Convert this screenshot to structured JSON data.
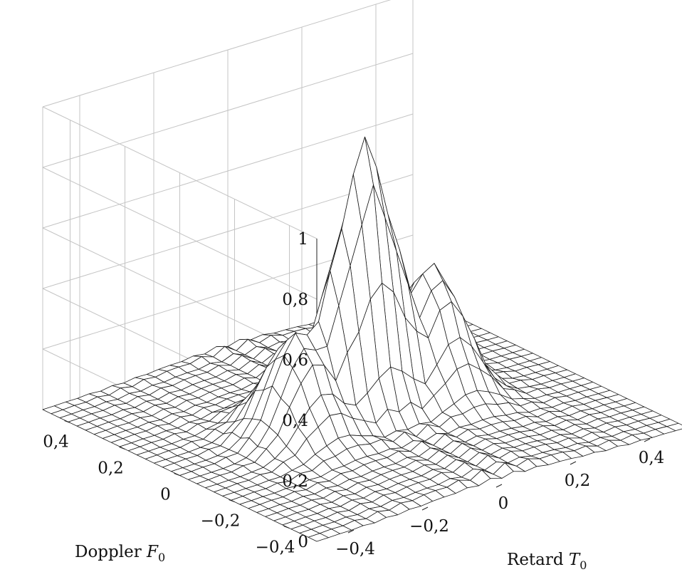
{
  "chart_data": {
    "type": "surface",
    "title": "",
    "xlabel": "Retard",
    "xlabel_symbol": "T",
    "xlabel_sub": "0",
    "ylabel": "Doppler",
    "ylabel_symbol": "F",
    "ylabel_sub": "0",
    "zlabel": "",
    "xlim": [
      -0.5,
      0.5
    ],
    "ylim": [
      -0.5,
      0.5
    ],
    "zlim": [
      0,
      1
    ],
    "x_ticks": [
      -0.4,
      -0.2,
      0,
      0.2,
      0.4
    ],
    "x_tick_labels": [
      "−0,4",
      "−0,2",
      "0",
      "0,2",
      "0,4"
    ],
    "y_ticks": [
      -0.4,
      -0.2,
      0,
      0.2,
      0.4
    ],
    "y_tick_labels": [
      "−0,4",
      "−0,2",
      "0",
      "0,2",
      "0,4"
    ],
    "z_ticks": [
      0,
      0.2,
      0.4,
      0.6,
      0.8,
      1
    ],
    "z_tick_labels": [
      "0",
      "0,2",
      "0,4",
      "0,6",
      "0,8",
      "1"
    ],
    "grid": true,
    "mesh_samples": 33,
    "peak": {
      "x": 0,
      "y": 0,
      "z": 0.91
    },
    "side_lobes": [
      {
        "x": -0.18,
        "y": 0,
        "z": 0.33
      },
      {
        "x": 0.18,
        "y": 0,
        "z": 0.42
      }
    ],
    "surface_color": "#ffffff",
    "line_color": "#1a1a1a",
    "grid_color": "#c4c4c4"
  }
}
